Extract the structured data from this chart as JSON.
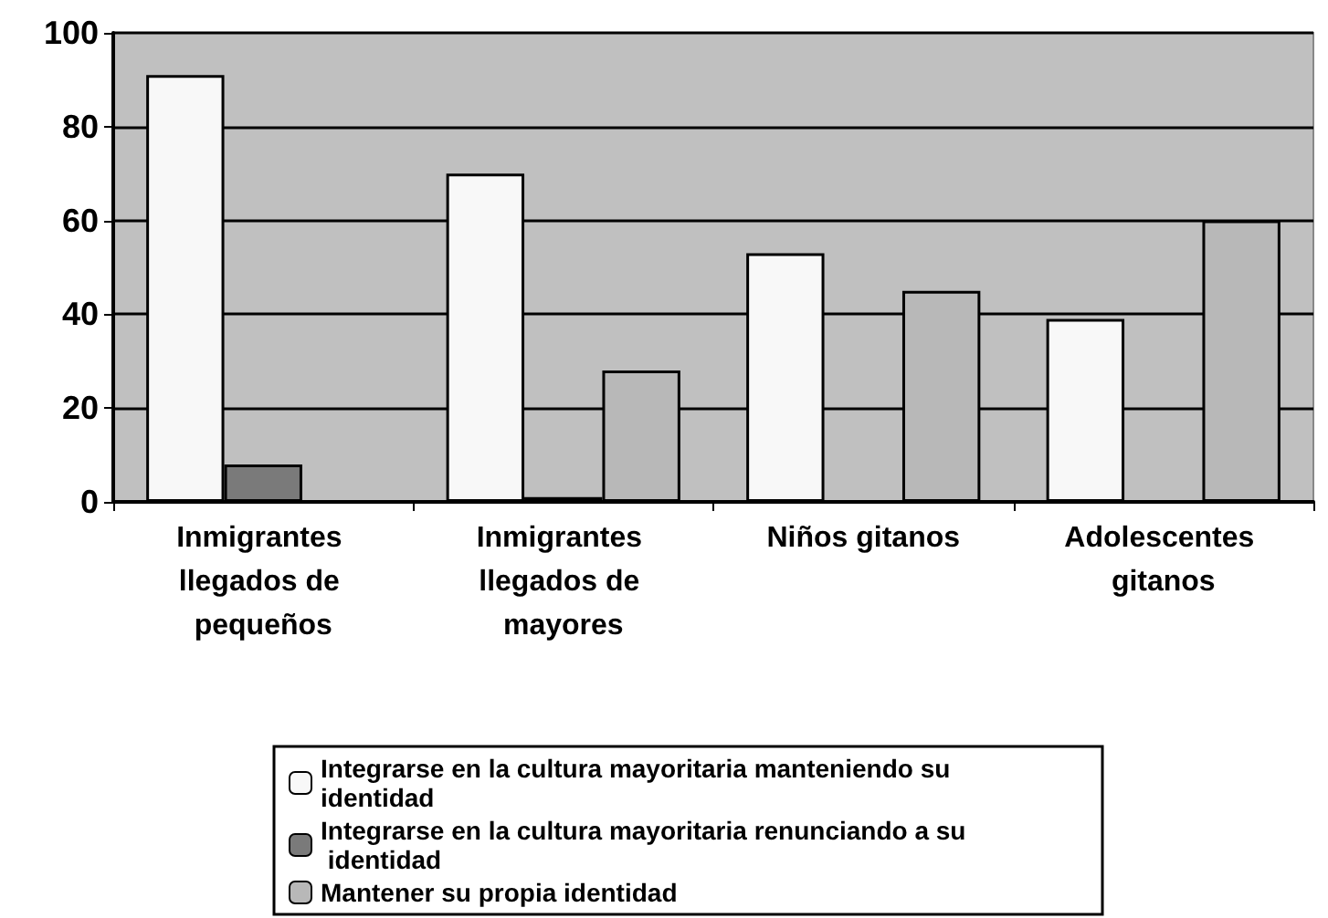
{
  "chart_data": {
    "type": "bar",
    "categories": [
      "Inmigrantes llegados de pequeños",
      "Inmigrantes llegados de mayores",
      "Niños gitanos",
      "Adolescentes gitanos"
    ],
    "series": [
      {
        "name": "Integrarse en la cultura mayoritaria manteniendo su identidad",
        "color": "#f8f8f8",
        "values": [
          91,
          70,
          53,
          39
        ]
      },
      {
        "name": "Integrarse en la cultura mayoritaria renunciando a su identidad",
        "color": "#7a7a7a",
        "values": [
          8,
          1,
          0,
          0
        ]
      },
      {
        "name": "Mantener su propia identidad",
        "color": "#b8b8b8",
        "values": [
          0,
          28,
          45,
          60
        ]
      }
    ],
    "ylim": [
      0,
      100
    ],
    "yticks": [
      0,
      20,
      40,
      60,
      80,
      100
    ],
    "grid": "y",
    "legend": "bottom"
  }
}
